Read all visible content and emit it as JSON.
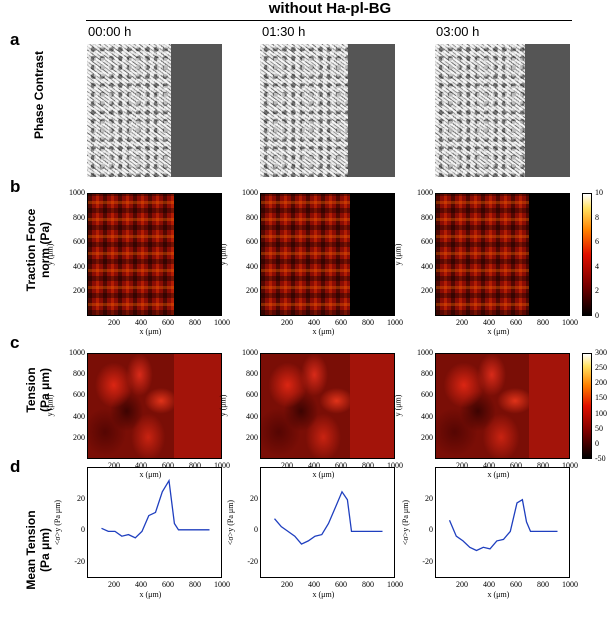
{
  "figure_title": "without Ha-pl-BG",
  "panels": {
    "a": "a",
    "b": "b",
    "c": "c",
    "d": "d"
  },
  "row_labels": {
    "a": [
      "Phase Contrast"
    ],
    "b": [
      "Traction Force",
      "norm (Pa)"
    ],
    "c": [
      "Tension",
      "(Pa μm)"
    ],
    "d": [
      "Mean Tension",
      "(Pa μm)"
    ]
  },
  "timepoints": [
    "00:00 h",
    "01:30 h",
    "03:00 h"
  ],
  "axis_labels": {
    "x": "x (μm)",
    "y": "y (μm)",
    "mean_y": "<σ>y (Pa μm)"
  },
  "colors": {
    "mean_line": "#1f3fbf",
    "background": "#ffffff"
  },
  "chart_data": [
    {
      "type": "heatmap",
      "title": "",
      "xlabel": "x (μm)",
      "ylabel": "y (μm)",
      "xlim": [
        0,
        1000
      ],
      "ylim": [
        0,
        1000
      ],
      "xticks": [
        "200",
        "400",
        "600",
        "800",
        "1000"
      ],
      "yticks": [
        "200",
        "400",
        "600",
        "800",
        "1000"
      ],
      "colorbar": {
        "min": 0,
        "max": 10,
        "ticks": [
          "10",
          "8",
          "6",
          "4",
          "2",
          "0"
        ]
      },
      "front_x": [
        650,
        670,
        700
      ]
    },
    {
      "type": "heatmap",
      "title": "",
      "xlabel": "x (μm)",
      "ylabel": "y (μm)",
      "xlim": [
        0,
        1000
      ],
      "ylim": [
        0,
        1000
      ],
      "xticks": [
        "200",
        "400",
        "600",
        "800",
        "1000"
      ],
      "yticks": [
        "200",
        "400",
        "600",
        "800",
        "1000"
      ],
      "colorbar": {
        "min": -50,
        "max": 300,
        "ticks": [
          "300",
          "250",
          "200",
          "150",
          "100",
          "50",
          "0",
          "-50"
        ]
      },
      "front_x": [
        650,
        670,
        700
      ]
    },
    {
      "type": "line",
      "title": "",
      "xlabel": "x (μm)",
      "ylabel": "<σ>y (Pa μm)",
      "xlim": [
        0,
        1000
      ],
      "ylim": [
        -30,
        40
      ],
      "xticks": [
        "200",
        "400",
        "600",
        "800",
        "1000"
      ],
      "yticks": [
        "20",
        "0",
        "-20"
      ],
      "series": [
        {
          "x": [
            100,
            150,
            200,
            250,
            300,
            350,
            400,
            450,
            500,
            550,
            600,
            640,
            670,
            700,
            750,
            800,
            850,
            900
          ],
          "y": [
            2,
            0,
            0,
            -3,
            -2,
            -4,
            0,
            10,
            12,
            25,
            32,
            5,
            1,
            1,
            1,
            1,
            1,
            1
          ]
        },
        {
          "x": [
            100,
            150,
            200,
            250,
            300,
            350,
            400,
            450,
            500,
            550,
            600,
            640,
            670,
            700,
            750,
            800,
            850,
            900
          ],
          "y": [
            8,
            3,
            0,
            -3,
            -8,
            -6,
            -3,
            -2,
            5,
            15,
            25,
            20,
            0,
            0,
            0,
            0,
            0,
            0
          ]
        },
        {
          "x": [
            100,
            150,
            200,
            250,
            300,
            350,
            400,
            450,
            500,
            550,
            600,
            640,
            670,
            700,
            750,
            800,
            850,
            900
          ],
          "y": [
            7,
            -3,
            -6,
            -10,
            -12,
            -10,
            -11,
            -6,
            -5,
            0,
            18,
            20,
            6,
            0,
            0,
            0,
            0,
            0
          ]
        }
      ]
    }
  ]
}
